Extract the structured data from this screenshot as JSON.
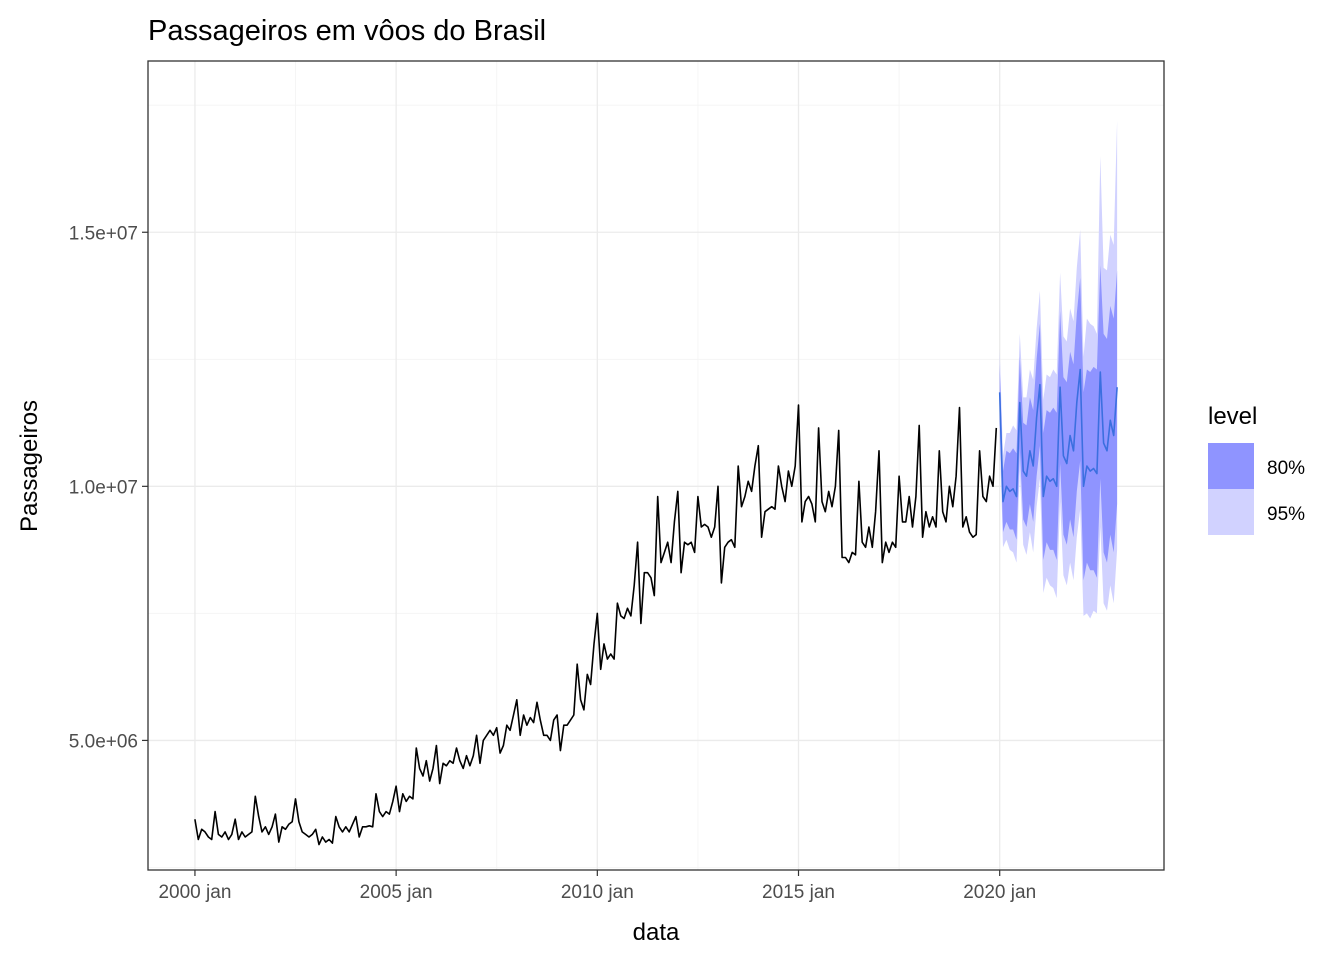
{
  "chart_data": {
    "type": "line",
    "title": "Passageiros em vôos do Brasil",
    "xlabel": "data",
    "ylabel": "Passageiros",
    "x_ticks": [
      "2000 jan",
      "2005 jan",
      "2010 jan",
      "2015 jan",
      "2020 jan"
    ],
    "y_ticks": [
      "5.0e+06",
      "1.0e+07",
      "1.5e+07"
    ],
    "xlim": [
      "1998-11",
      "2024-02"
    ],
    "ylim": [
      2450000,
      18370000
    ],
    "grid": true,
    "legend": {
      "title": "level",
      "position": "right",
      "items": [
        {
          "label": "80%",
          "color": "#8f94ff"
        },
        {
          "label": "95%",
          "color": "#d1d2ff"
        }
      ]
    },
    "series": [
      {
        "name": "observed",
        "color": "#000000",
        "start": "2000-01",
        "frequency": "monthly",
        "values": [
          3450000,
          3050000,
          3250000,
          3200000,
          3100000,
          3050000,
          3600000,
          3150000,
          3100000,
          3200000,
          3050000,
          3150000,
          3450000,
          3050000,
          3200000,
          3100000,
          3150000,
          3200000,
          3900000,
          3500000,
          3200000,
          3300000,
          3150000,
          3300000,
          3550000,
          3000000,
          3300000,
          3250000,
          3350000,
          3400000,
          3850000,
          3400000,
          3200000,
          3150000,
          3100000,
          3150000,
          3250000,
          2950000,
          3100000,
          3000000,
          3050000,
          2980000,
          3500000,
          3300000,
          3200000,
          3300000,
          3200000,
          3350000,
          3500000,
          3100000,
          3300000,
          3300000,
          3320000,
          3300000,
          3950000,
          3600000,
          3500000,
          3600000,
          3550000,
          3800000,
          4100000,
          3600000,
          3950000,
          3800000,
          3900000,
          3850000,
          4850000,
          4450000,
          4300000,
          4600000,
          4200000,
          4450000,
          4900000,
          4150000,
          4550000,
          4500000,
          4600000,
          4550000,
          4850000,
          4600000,
          4450000,
          4700000,
          4500000,
          4700000,
          5100000,
          4550000,
          5000000,
          5100000,
          5200000,
          5100000,
          5250000,
          4750000,
          4900000,
          5300000,
          5200000,
          5500000,
          5800000,
          5100000,
          5500000,
          5300000,
          5450000,
          5350000,
          5750000,
          5400000,
          5100000,
          5100000,
          5000000,
          5400000,
          5500000,
          4800000,
          5300000,
          5300000,
          5400000,
          5500000,
          6500000,
          5800000,
          5600000,
          6300000,
          6100000,
          6900000,
          7500000,
          6400000,
          6900000,
          6600000,
          6700000,
          6600000,
          7700000,
          7450000,
          7400000,
          7600000,
          7450000,
          8050000,
          8900000,
          7300000,
          8300000,
          8300000,
          8200000,
          7850000,
          9800000,
          8500000,
          8700000,
          8900000,
          8500000,
          9300000,
          9900000,
          8300000,
          8900000,
          8850000,
          8900000,
          8700000,
          9800000,
          9200000,
          9250000,
          9200000,
          9000000,
          9200000,
          10000000,
          8100000,
          8800000,
          8900000,
          8950000,
          8800000,
          10400000,
          9600000,
          9800000,
          10100000,
          9900000,
          10400000,
          10800000,
          9000000,
          9500000,
          9550000,
          9600000,
          9550000,
          10400000,
          10000000,
          9700000,
          10300000,
          10000000,
          10400000,
          11600000,
          9300000,
          9700000,
          9800000,
          9650000,
          9300000,
          11150000,
          9700000,
          9500000,
          9900000,
          9600000,
          10000000,
          11100000,
          8600000,
          8600000,
          8500000,
          8700000,
          8650000,
          10100000,
          8900000,
          8800000,
          9200000,
          8800000,
          9500000,
          10700000,
          8500000,
          8900000,
          8700000,
          8900000,
          8800000,
          10200000,
          9300000,
          9300000,
          9800000,
          9200000,
          9800000,
          11200000,
          9000000,
          9500000,
          9200000,
          9400000,
          9200000,
          10700000,
          9500000,
          9300000,
          10000000,
          9600000,
          10200000,
          11550000,
          9200000,
          9400000,
          9100000,
          9000000,
          9050000,
          10700000,
          9800000,
          9700000,
          10200000,
          10000000,
          11150000
        ]
      },
      {
        "name": "forecast",
        "color": "#3b6fe0",
        "start": "2020-01",
        "frequency": "monthly",
        "values": [
          11850000,
          9700000,
          10000000,
          9900000,
          9950000,
          9800000,
          11650000,
          10300000,
          10200000,
          10700000,
          10400000,
          11350000,
          12000000,
          9800000,
          10200000,
          10100000,
          10150000,
          10000000,
          11950000,
          10600000,
          10450000,
          11000000,
          10700000,
          11650000,
          12300000,
          10000000,
          10400000,
          10300000,
          10350000,
          10250000,
          12250000,
          10850000,
          10700000,
          11300000,
          11000000,
          11950000
        ],
        "lo80": [
          11300000,
          9100000,
          9300000,
          9150000,
          9150000,
          8950000,
          10750000,
          9350000,
          9200000,
          9650000,
          9300000,
          10200000,
          10800000,
          8550000,
          8900000,
          8750000,
          8750000,
          8550000,
          10450000,
          9050000,
          8850000,
          9350000,
          9000000,
          9900000,
          10500000,
          8150000,
          8500000,
          8350000,
          8350000,
          8200000,
          10150000,
          8700000,
          8500000,
          9050000,
          8700000,
          9650000
        ],
        "hi80": [
          12400000,
          10300000,
          10700000,
          10650000,
          10750000,
          10650000,
          12550000,
          11250000,
          11200000,
          11750000,
          11500000,
          12500000,
          13200000,
          11050000,
          11500000,
          11450000,
          11550000,
          11450000,
          13450000,
          12150000,
          12050000,
          12650000,
          12400000,
          13400000,
          14100000,
          11850000,
          12300000,
          12250000,
          12350000,
          12300000,
          14350000,
          13000000,
          12900000,
          13550000,
          13300000,
          14250000
        ],
        "lo95": [
          11000000,
          8800000,
          8950000,
          8750000,
          8700000,
          8500000,
          10300000,
          8850000,
          8650000,
          9100000,
          8700000,
          9600000,
          10150000,
          7900000,
          8200000,
          8050000,
          8000000,
          7800000,
          9700000,
          8250000,
          8050000,
          8500000,
          8150000,
          9000000,
          9550000,
          7450000,
          7500000,
          7400000,
          7550000,
          7500000,
          9200000,
          7700000,
          7550000,
          8050000,
          7700000,
          8750000
        ],
        "hi95": [
          12700000,
          10600000,
          11050000,
          11050000,
          11200000,
          11100000,
          13000000,
          11750000,
          11750000,
          12300000,
          12100000,
          13100000,
          13850000,
          11700000,
          12200000,
          12150000,
          12300000,
          12200000,
          14200000,
          12950000,
          12850000,
          13500000,
          13250000,
          14300000,
          15050000,
          12550000,
          13300000,
          13200000,
          13150000,
          13000000,
          16500000,
          14300000,
          14250000,
          14950000,
          14750000,
          17200000
        ]
      }
    ]
  }
}
